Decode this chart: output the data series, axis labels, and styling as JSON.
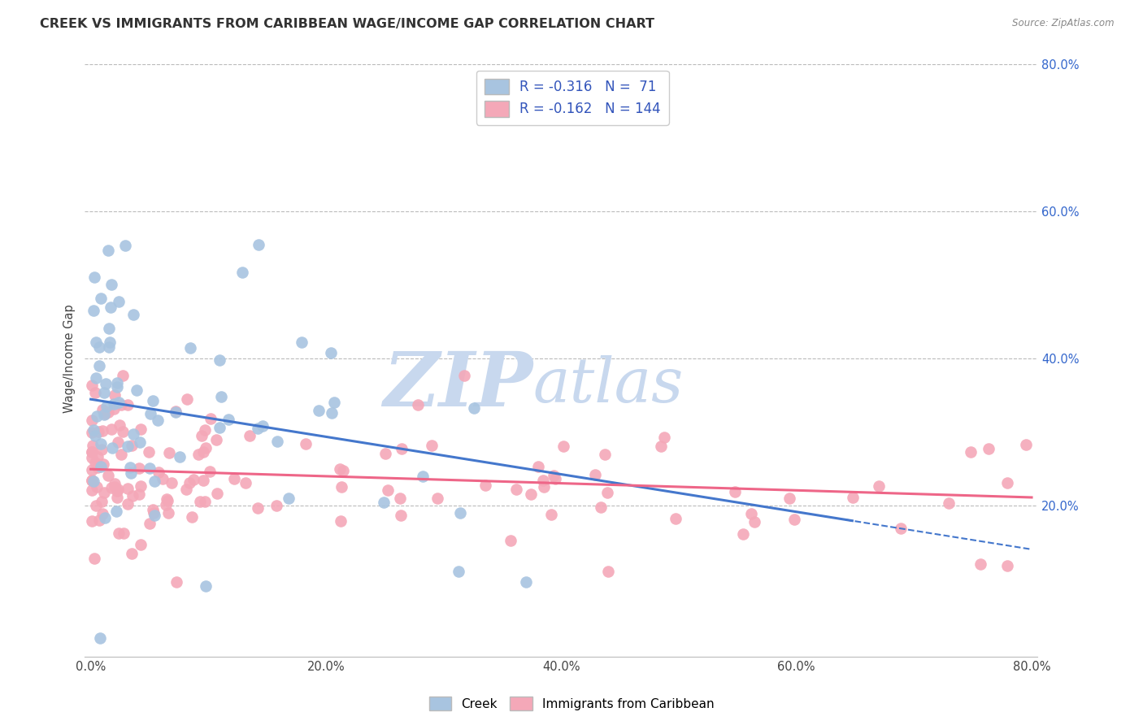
{
  "title": "CREEK VS IMMIGRANTS FROM CARIBBEAN WAGE/INCOME GAP CORRELATION CHART",
  "source": "Source: ZipAtlas.com",
  "ylabel": "Wage/Income Gap",
  "legend_labels": [
    "Creek",
    "Immigrants from Caribbean"
  ],
  "legend_r": [
    -0.316,
    -0.162
  ],
  "legend_n": [
    71,
    144
  ],
  "blue_color": "#A8C4E0",
  "pink_color": "#F4A8B8",
  "blue_line_color": "#4477CC",
  "pink_line_color": "#EE6688",
  "xlim": [
    -0.005,
    0.805
  ],
  "ylim": [
    -0.005,
    0.805
  ],
  "xticks": [
    0.0,
    0.2,
    0.4,
    0.6,
    0.8
  ],
  "yticks_right": [
    0.2,
    0.4,
    0.6,
    0.8
  ],
  "xtick_labels": [
    "0.0%",
    "20.0%",
    "40.0%",
    "60.0%",
    "80.0%"
  ],
  "ytick_labels_right": [
    "20.0%",
    "40.0%",
    "60.0%",
    "80.0%"
  ],
  "background_color": "#FFFFFF",
  "grid_color": "#BBBBBB",
  "watermark_zip": "ZIP",
  "watermark_atlas": "atlas",
  "blue_line_x_solid_end": 0.65,
  "blue_line_intercept": 0.345,
  "blue_line_slope": -0.255,
  "pink_line_intercept": 0.25,
  "pink_line_slope": -0.048
}
